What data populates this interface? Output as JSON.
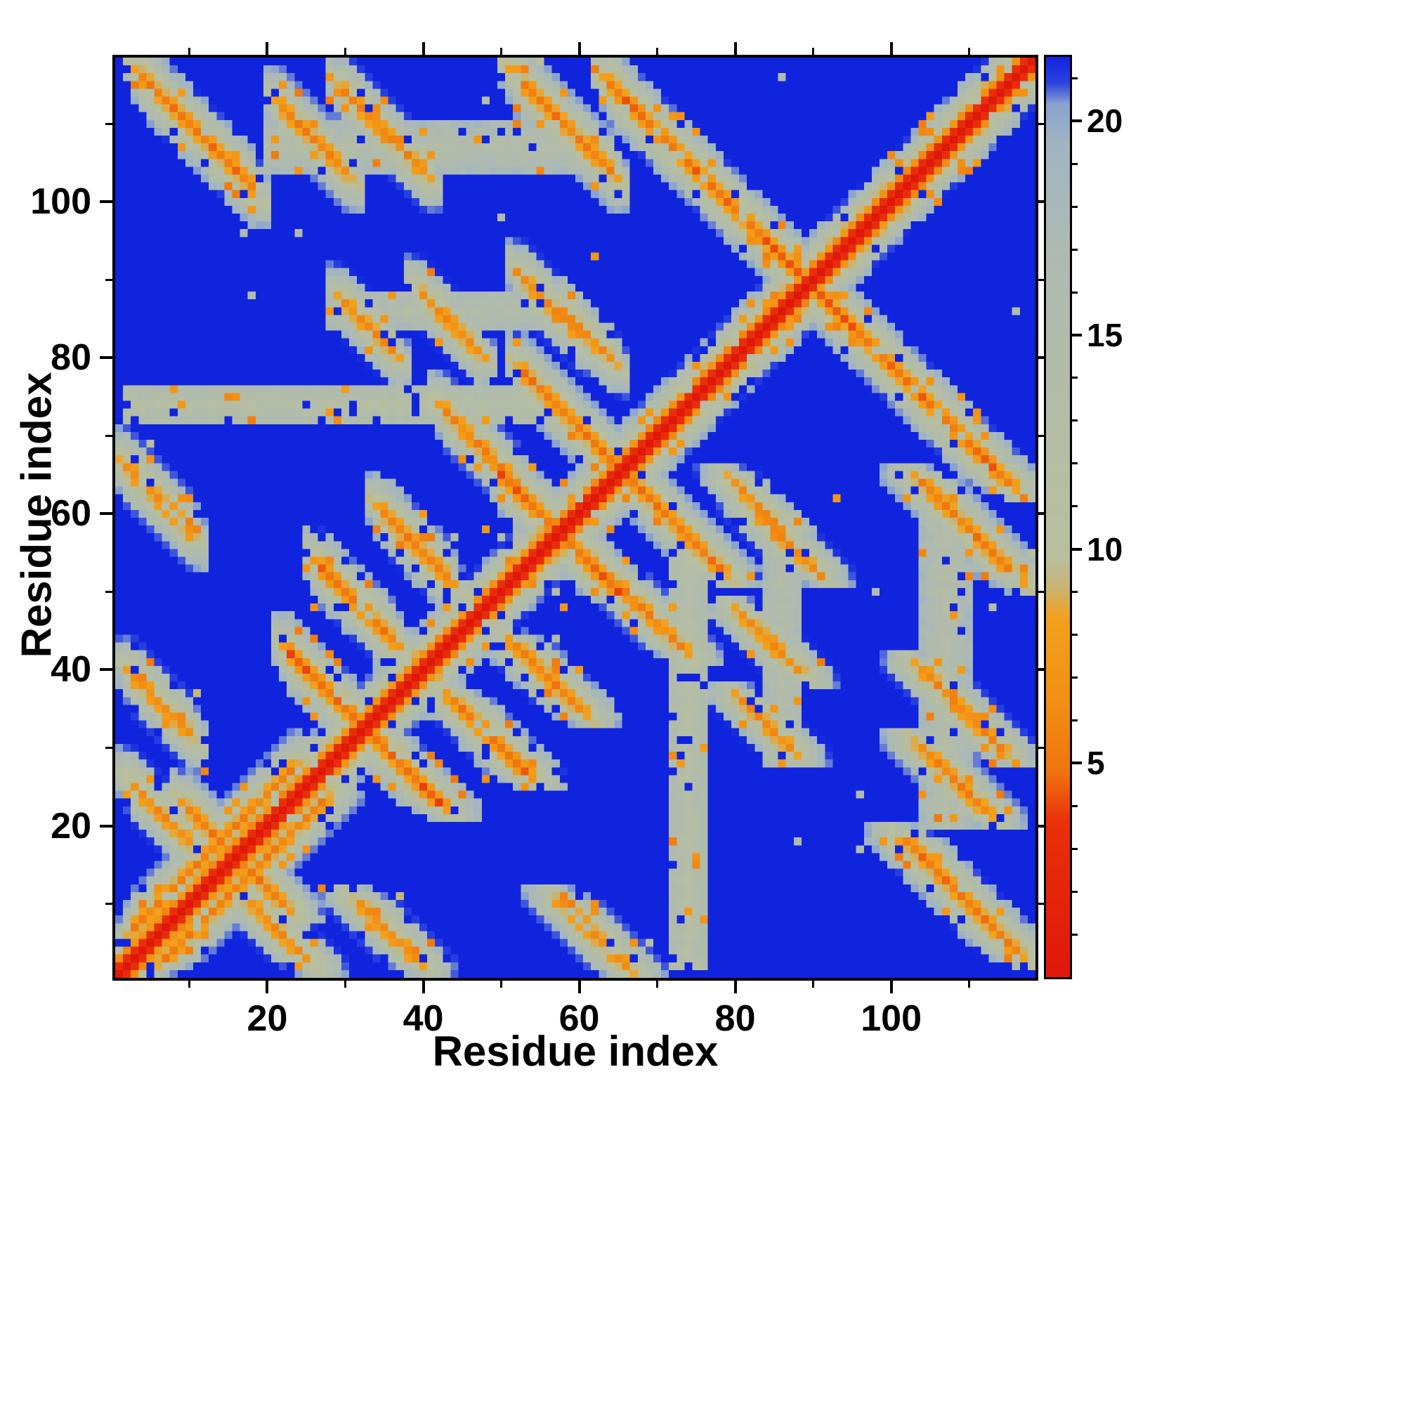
{
  "chart_data": {
    "type": "heatmap",
    "title": "",
    "xlabel": "Residue index",
    "ylabel": "Residue index",
    "n_residues": 118,
    "x_ticks": [
      20,
      40,
      60,
      80,
      100
    ],
    "y_ticks": [
      20,
      40,
      60,
      80,
      100
    ],
    "x_minor_ticks": [
      10,
      30,
      50,
      70,
      90,
      110
    ],
    "y_minor_ticks": [
      10,
      30,
      50,
      70,
      90,
      110
    ],
    "grid": false,
    "colorbar": {
      "position": "right",
      "min": 0,
      "max": 21.5,
      "ticks": [
        5,
        10,
        15,
        20
      ],
      "minor_tick_step": 1,
      "label": ""
    },
    "colormap": [
      {
        "v": 0.0,
        "c": "#e0170b"
      },
      {
        "v": 3.6,
        "c": "#e93009"
      },
      {
        "v": 4.8,
        "c": "#f0740e"
      },
      {
        "v": 6.5,
        "c": "#f29013"
      },
      {
        "v": 8.4,
        "c": "#f2a11d"
      },
      {
        "v": 9.1,
        "c": "#c9b575"
      },
      {
        "v": 9.8,
        "c": "#b9bf9d"
      },
      {
        "v": 13.0,
        "c": "#b4bda6"
      },
      {
        "v": 17.0,
        "c": "#aebab2"
      },
      {
        "v": 19.5,
        "c": "#a0b4c2"
      },
      {
        "v": 20.4,
        "c": "#8aa2cf"
      },
      {
        "v": 20.9,
        "c": "#2b43e0"
      },
      {
        "v": 21.5,
        "c": "#1024de"
      }
    ],
    "background_value": 21.5,
    "diagonal_value": 0,
    "model": {
      "chain_step": 3.35,
      "contact_falloff_per_residue": 3.0,
      "contacts": [
        {
          "i": 3,
          "j": 7,
          "len": 20,
          "dir": 1,
          "d": 5.6
        },
        {
          "i": 10,
          "j": 22,
          "len": 6,
          "dir": -1,
          "d": 5.4
        },
        {
          "i": 23,
          "j": 42,
          "len": 10,
          "dir": -1,
          "d": 4.6
        },
        {
          "i": 27,
          "j": 53,
          "len": 9,
          "dir": -1,
          "d": 5.0
        },
        {
          "i": 35,
          "j": 60,
          "len": 8,
          "dir": -1,
          "d": 5.2
        },
        {
          "i": 50,
          "j": 65,
          "len": 8,
          "dir": -1,
          "d": 4.6
        },
        {
          "i": 53,
          "j": 78,
          "len": 11,
          "dir": -1,
          "d": 5.4
        },
        {
          "i": 43,
          "j": 73,
          "len": 9,
          "dir": -1,
          "d": 5.8
        },
        {
          "i": 64,
          "j": 115,
          "len": 51,
          "dir": -1,
          "d": 4.8
        },
        {
          "i": 4,
          "j": 116,
          "len": 14,
          "dir": -1,
          "d": 5.2
        },
        {
          "i": 22,
          "j": 112,
          "len": 8,
          "dir": -1,
          "d": 5.6
        },
        {
          "i": 30,
          "j": 114,
          "len": 10,
          "dir": -1,
          "d": 6.0
        },
        {
          "i": 52,
          "j": 116,
          "len": 12,
          "dir": -1,
          "d": 5.4
        },
        {
          "i": 53,
          "j": 90,
          "len": 7,
          "dir": -1,
          "d": 6.2
        },
        {
          "i": 40,
          "j": 88,
          "len": 7,
          "dir": -1,
          "d": 6.4
        },
        {
          "i": 30,
          "j": 87,
          "len": 6,
          "dir": -1,
          "d": 6.4
        },
        {
          "i": 58,
          "j": 86,
          "len": 6,
          "dir": -1,
          "d": 6.6
        },
        {
          "i": 2,
          "j": 66,
          "len": 8,
          "dir": -1,
          "d": 5.8
        },
        {
          "i": 3,
          "j": 39,
          "len": 7,
          "dir": -1,
          "d": 6.0
        },
        {
          "i": 3,
          "j": 25,
          "len": 7,
          "dir": -1,
          "d": 6.2
        }
      ],
      "bands": [
        {
          "j_center": 74,
          "halfwidth": 2,
          "i_from": 2,
          "i_to": 58,
          "d": 12.5
        },
        {
          "j_center": 107,
          "halfwidth": 3,
          "i_from": 20,
          "i_to": 62,
          "d": 13.5
        },
        {
          "j_center": 86,
          "halfwidth": 2,
          "i_from": 28,
          "i_to": 60,
          "d": 14.0
        }
      ]
    }
  }
}
